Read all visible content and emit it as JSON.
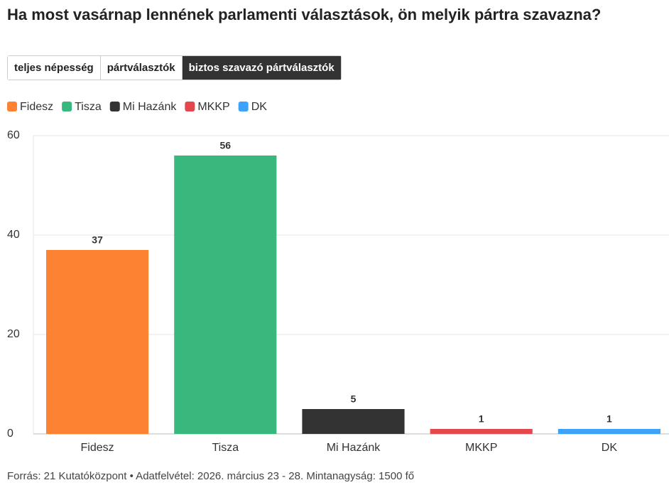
{
  "title": "Ha most vasárnap lennének parlamenti választások, ön melyik pártra szavazna?",
  "tabs": [
    "teljes népesség",
    "pártválasztók",
    "biztos szavazó pártválasztók"
  ],
  "active_tab": 2,
  "chart_data": {
    "type": "bar",
    "categories": [
      "Fidesz",
      "Tisza",
      "Mi Hazánk",
      "MKKP",
      "DK"
    ],
    "values": [
      37,
      56,
      5,
      1,
      1
    ],
    "colors": [
      "#fd8232",
      "#38b87c",
      "#333333",
      "#e5474f",
      "#3ea2fb"
    ],
    "ylim": [
      0,
      60
    ],
    "yticks": [
      0,
      20,
      40,
      60
    ],
    "grid": true,
    "legend": "top-left"
  },
  "source": "Forrás: 21 Kutatóközpont • Adatfelvétel: 2026. március 23 - 28. Mintanagyság: 1500 fő"
}
